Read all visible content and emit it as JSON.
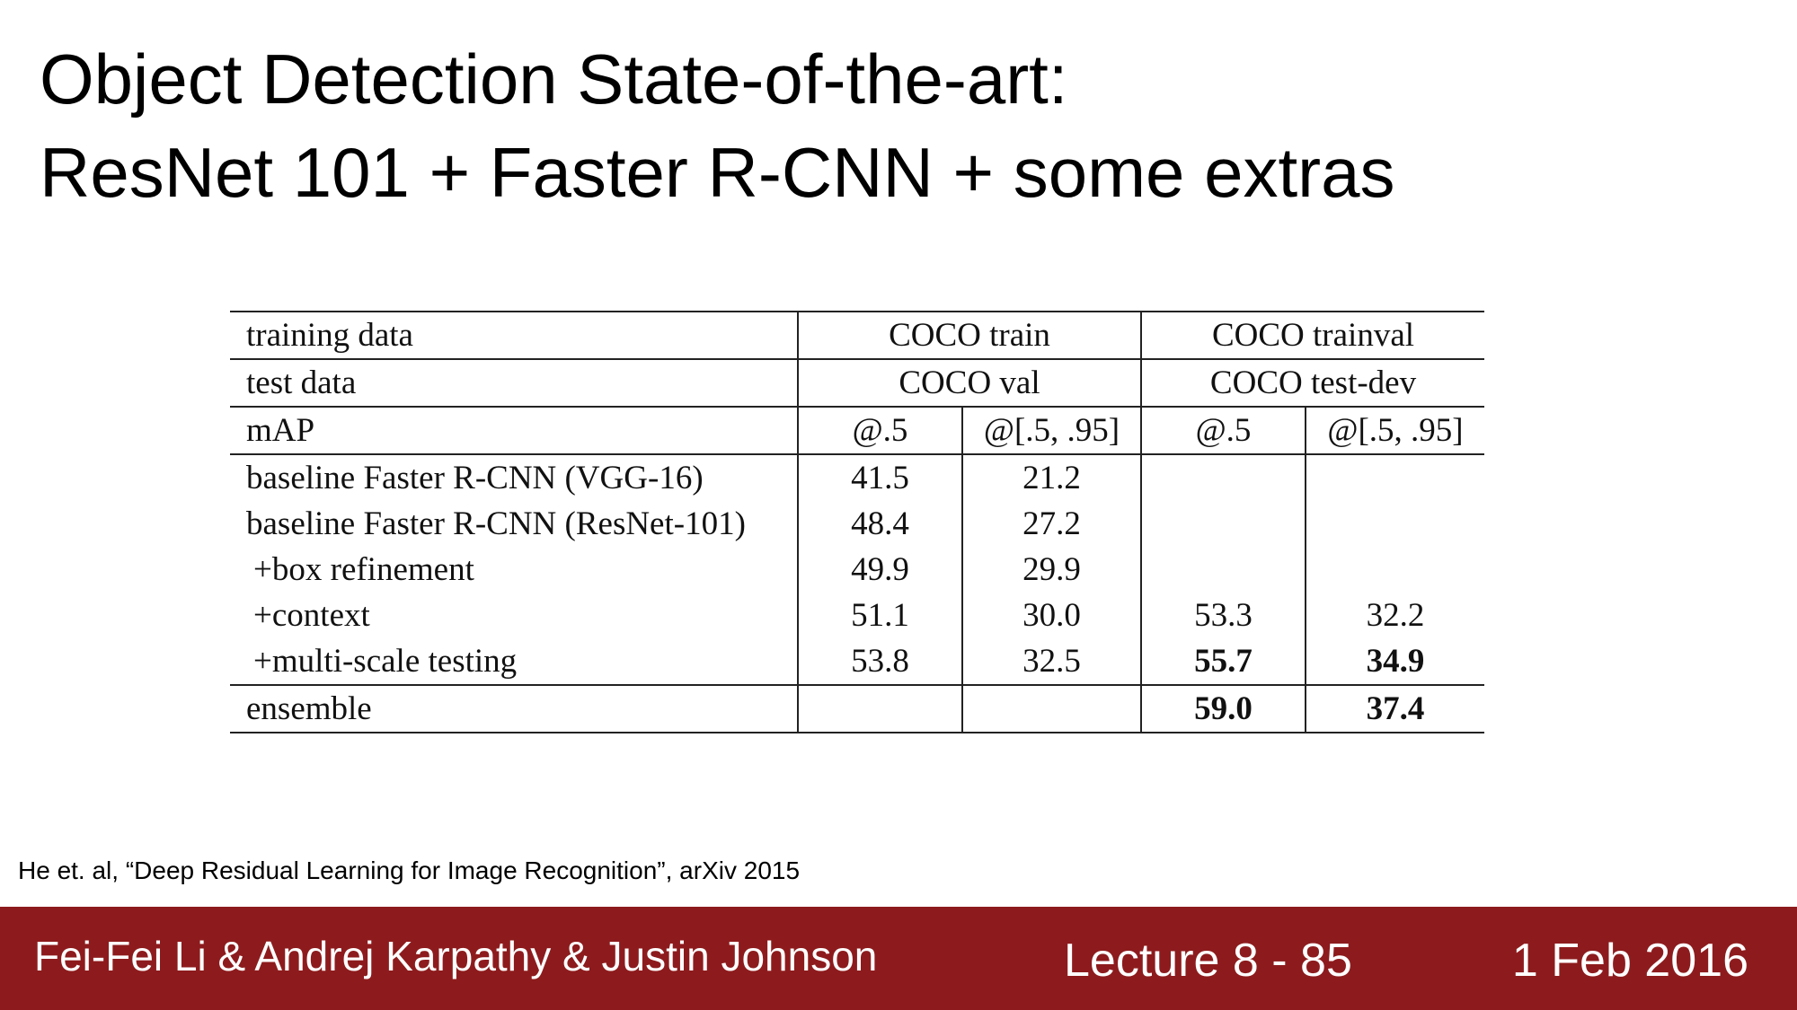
{
  "slide": {
    "title_line1": "Object Detection State-of-the-art:",
    "title_line2": "ResNet 101 + Faster R-CNN + some extras"
  },
  "table": {
    "training_data": {
      "label": "training data",
      "coco_train": "COCO train",
      "coco_trainval": "COCO trainval"
    },
    "test_data": {
      "label": "test data",
      "coco_val": "COCO val",
      "coco_testdev": "COCO test-dev"
    },
    "metric": {
      "label": "mAP",
      "h1": "@.5",
      "h2": "@[.5, .95]",
      "h3": "@.5",
      "h4": "@[.5, .95]"
    },
    "rows": [
      {
        "label": "baseline Faster R-CNN (VGG-16)",
        "v1": "41.5",
        "v2": "21.2",
        "v3": "",
        "v4": ""
      },
      {
        "label": "baseline Faster R-CNN (ResNet-101)",
        "v1": "48.4",
        "v2": "27.2",
        "v3": "",
        "v4": ""
      },
      {
        "label": "+box refinement",
        "v1": "49.9",
        "v2": "29.9",
        "v3": "",
        "v4": ""
      },
      {
        "label": "+context",
        "v1": "51.1",
        "v2": "30.0",
        "v3": "53.3",
        "v4": "32.2"
      },
      {
        "label": "+multi-scale testing",
        "v1": "53.8",
        "v2": "32.5",
        "v3": "55.7",
        "v4": "34.9"
      },
      {
        "label": "ensemble",
        "v1": "",
        "v2": "",
        "v3": "59.0",
        "v4": "37.4"
      }
    ]
  },
  "citation": "He et. al, “Deep Residual Learning for Image Recognition”, arXiv 2015",
  "footer": {
    "authors": "Fei-Fei Li & Andrej Karpathy & Justin Johnson",
    "lecture": "Lecture 8 - 85",
    "date": "1 Feb 2016",
    "bg_color": "#8d1b1d"
  }
}
